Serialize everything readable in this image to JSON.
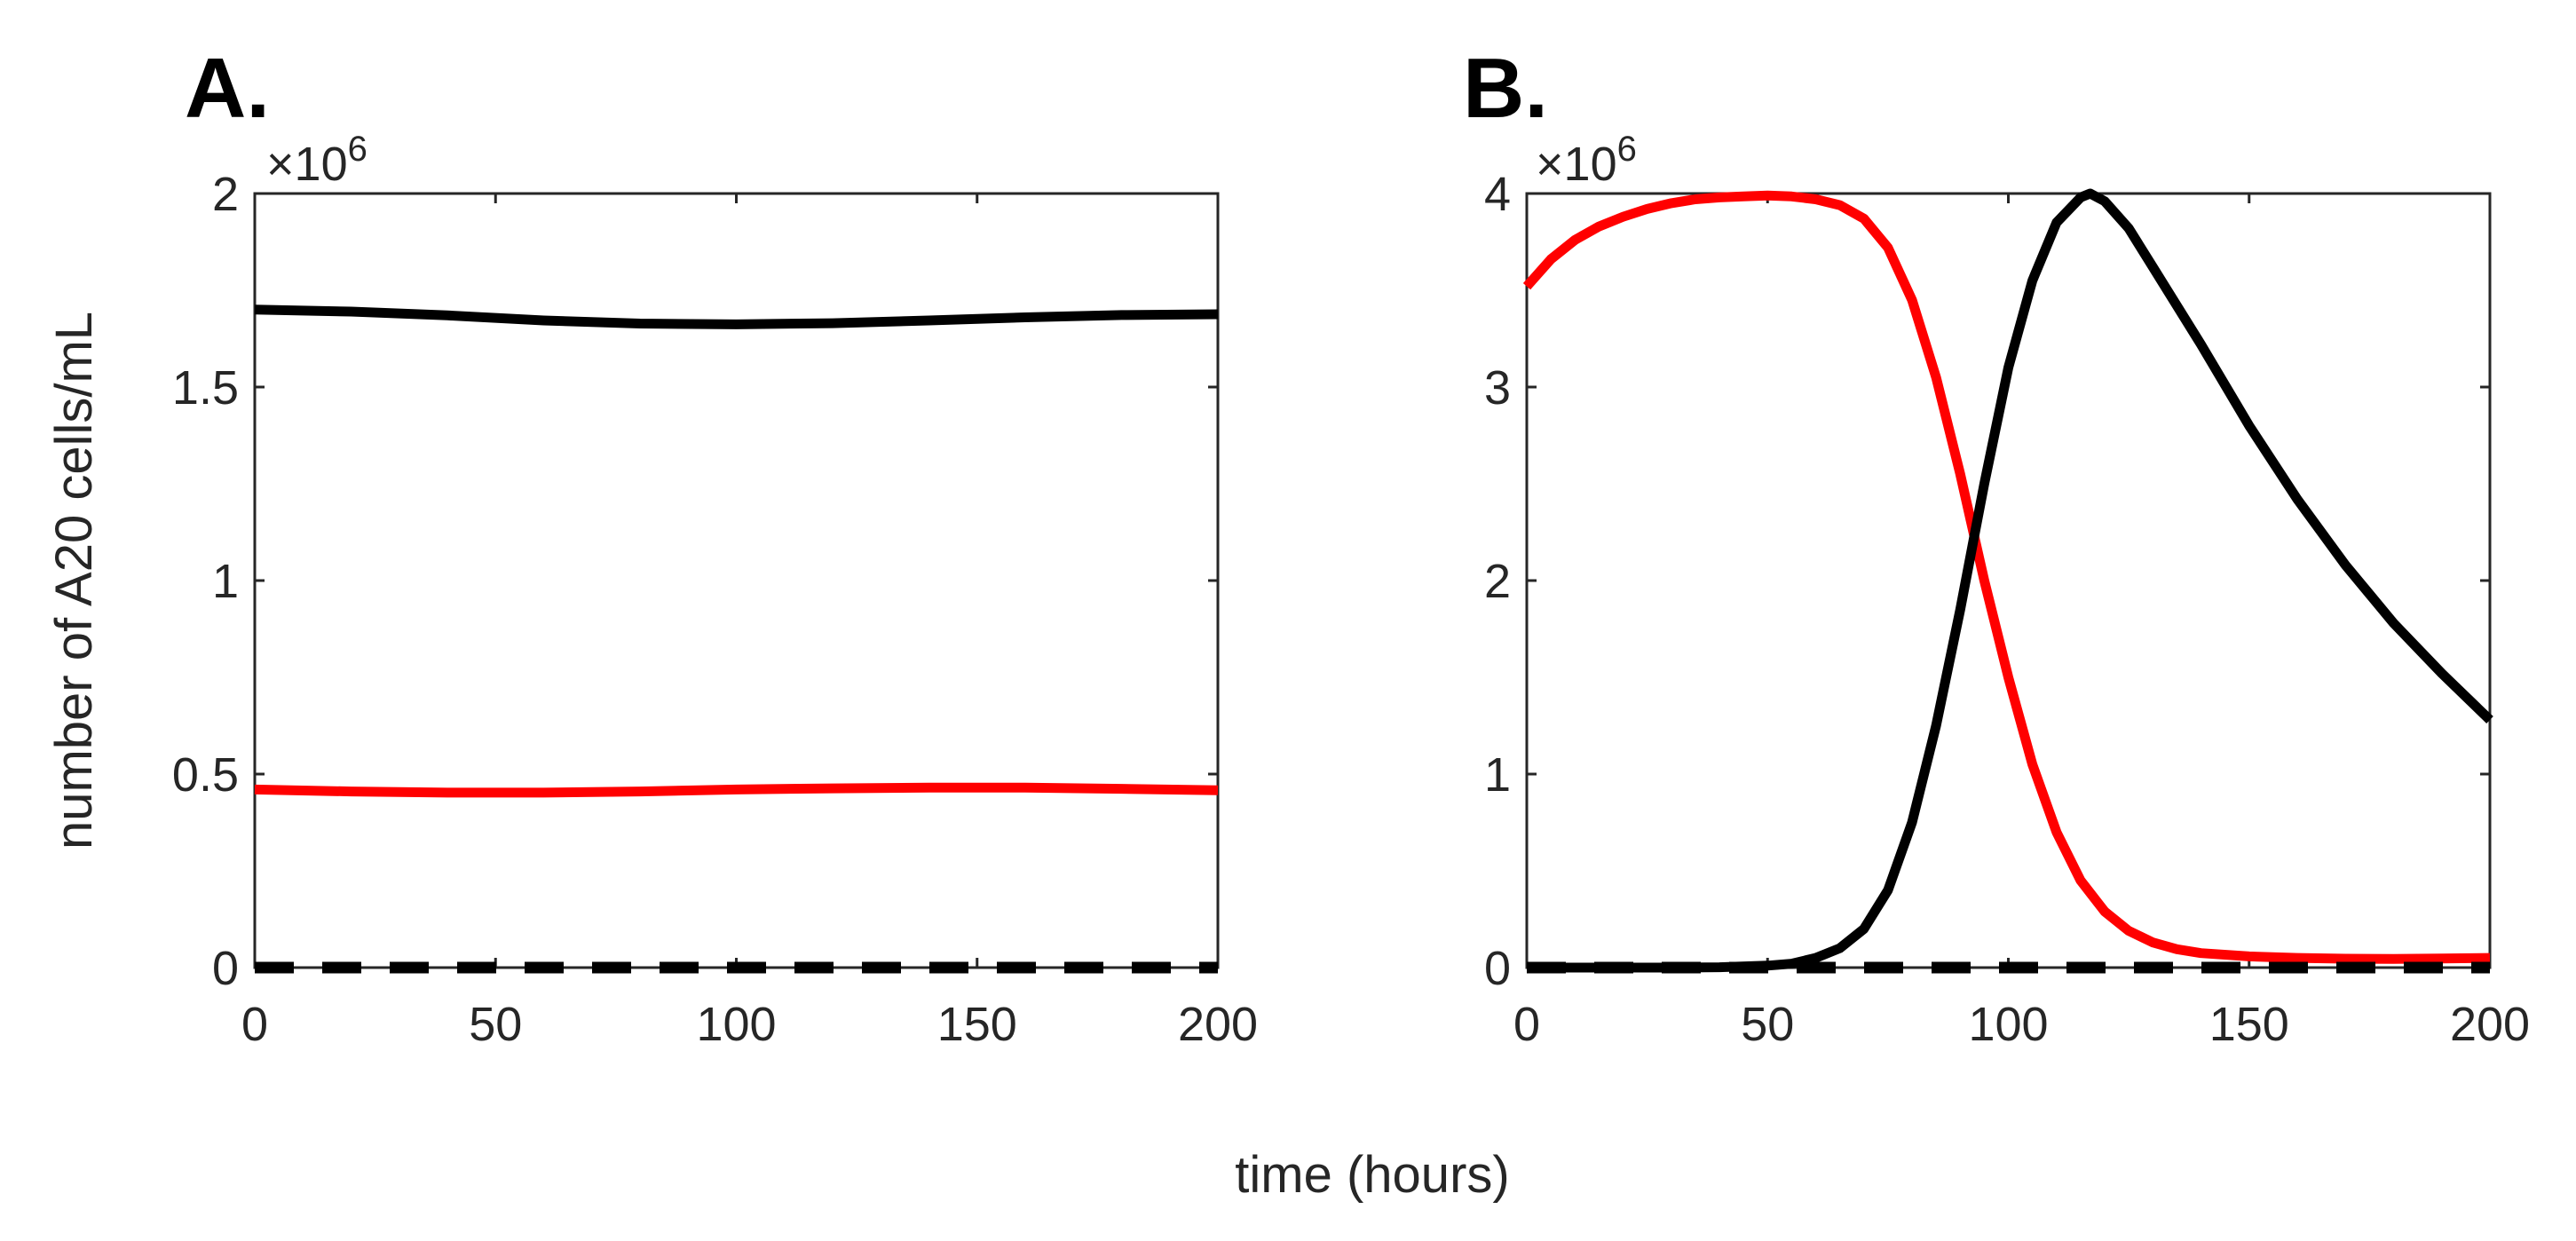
{
  "figure": {
    "xlabel": "time (hours)",
    "ylabel": "number of A20 cells/mL"
  },
  "chart_data": [
    {
      "panel": "A.",
      "type": "line",
      "exponent_label": "×10",
      "exponent_power": "6",
      "xlim": [
        0,
        200
      ],
      "ylim": [
        0,
        2
      ],
      "xticks": [
        0,
        50,
        100,
        150,
        200
      ],
      "xtick_labels": [
        "0",
        "50",
        "100",
        "150",
        "200"
      ],
      "yticks": [
        0,
        0.5,
        1,
        1.5,
        2
      ],
      "ytick_labels": [
        "0",
        "0.5",
        "1",
        "1.5",
        "2"
      ],
      "series": [
        {
          "name": "black",
          "color": "#000000",
          "style": "solid",
          "x": [
            0,
            20,
            40,
            60,
            80,
            100,
            120,
            140,
            160,
            180,
            200
          ],
          "y": [
            1.7,
            1.695,
            1.685,
            1.672,
            1.664,
            1.662,
            1.665,
            1.672,
            1.68,
            1.686,
            1.688
          ]
        },
        {
          "name": "red",
          "color": "#ff0000",
          "style": "solid",
          "x": [
            0,
            20,
            40,
            60,
            80,
            100,
            120,
            140,
            160,
            180,
            200
          ],
          "y": [
            0.46,
            0.455,
            0.452,
            0.452,
            0.455,
            0.46,
            0.463,
            0.465,
            0.465,
            0.462,
            0.458
          ]
        },
        {
          "name": "dashed",
          "color": "#000000",
          "style": "dashed",
          "x": [
            0,
            200
          ],
          "y": [
            0,
            0
          ]
        }
      ]
    },
    {
      "panel": "B.",
      "type": "line",
      "exponent_label": "×10",
      "exponent_power": "6",
      "xlim": [
        0,
        200
      ],
      "ylim": [
        0,
        4
      ],
      "xticks": [
        0,
        50,
        100,
        150,
        200
      ],
      "xtick_labels": [
        "0",
        "50",
        "100",
        "150",
        "200"
      ],
      "yticks": [
        0,
        1,
        2,
        3,
        4
      ],
      "ytick_labels": [
        "0",
        "1",
        "2",
        "3",
        "4"
      ],
      "series": [
        {
          "name": "red",
          "color": "#ff0000",
          "style": "solid",
          "x": [
            0,
            5,
            10,
            15,
            20,
            25,
            30,
            35,
            40,
            45,
            50,
            55,
            60,
            65,
            70,
            75,
            80,
            85,
            90,
            95,
            100,
            105,
            110,
            115,
            120,
            125,
            130,
            135,
            140,
            150,
            160,
            170,
            180,
            190,
            200
          ],
          "y": [
            3.52,
            3.66,
            3.76,
            3.83,
            3.88,
            3.92,
            3.95,
            3.97,
            3.98,
            3.985,
            3.99,
            3.985,
            3.97,
            3.94,
            3.87,
            3.72,
            3.45,
            3.05,
            2.55,
            2.0,
            1.5,
            1.05,
            0.7,
            0.45,
            0.29,
            0.19,
            0.13,
            0.095,
            0.075,
            0.058,
            0.05,
            0.046,
            0.045,
            0.047,
            0.05
          ]
        },
        {
          "name": "black",
          "color": "#000000",
          "style": "solid",
          "x": [
            0,
            10,
            20,
            30,
            40,
            50,
            55,
            60,
            65,
            70,
            75,
            80,
            85,
            90,
            95,
            100,
            105,
            110,
            115,
            117,
            120,
            125,
            130,
            140,
            150,
            160,
            170,
            180,
            190,
            200
          ],
          "y": [
            0,
            0,
            0,
            0,
            0.002,
            0.01,
            0.02,
            0.05,
            0.1,
            0.2,
            0.4,
            0.75,
            1.25,
            1.85,
            2.5,
            3.1,
            3.55,
            3.85,
            3.98,
            4.0,
            3.96,
            3.82,
            3.62,
            3.22,
            2.8,
            2.42,
            2.08,
            1.78,
            1.52,
            1.28
          ]
        },
        {
          "name": "dashed",
          "color": "#000000",
          "style": "dashed",
          "x": [
            0,
            200
          ],
          "y": [
            0,
            0
          ]
        }
      ]
    }
  ]
}
